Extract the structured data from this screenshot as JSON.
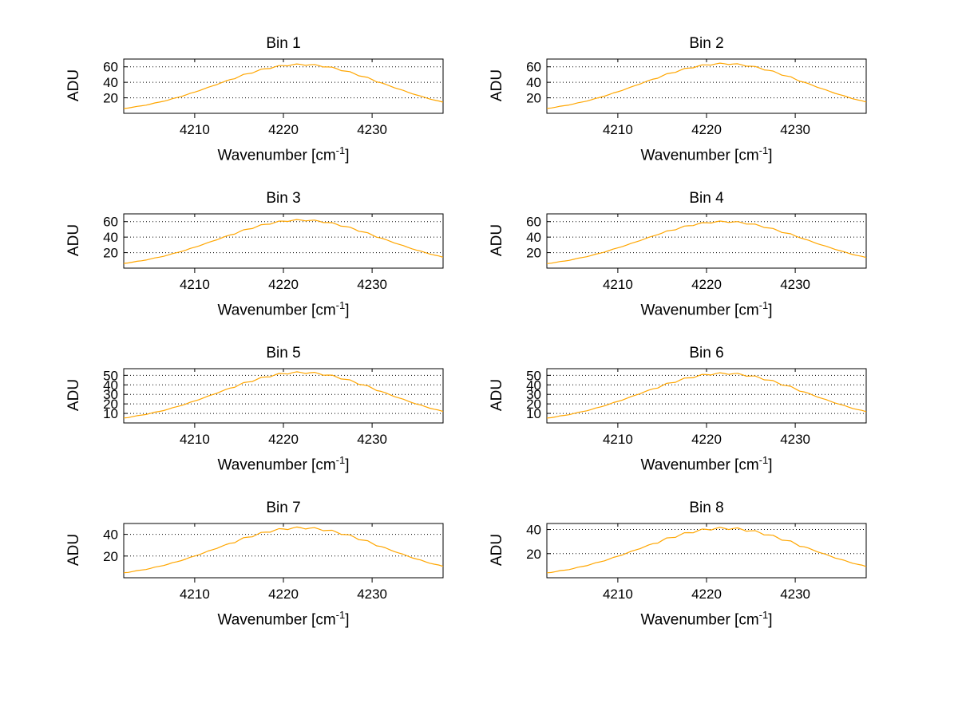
{
  "figure": {
    "background": "#ffffff",
    "line_color": "#ffa600",
    "axis_color": "#000000",
    "grid_color": "#000000"
  },
  "labels": {
    "ylabel": "ADU",
    "xlabel_prefix": "Wavenumber [cm",
    "xlabel_sup": "-1",
    "xlabel_suffix": "]"
  },
  "chart_data": {
    "type": "line",
    "layout": "4x2 grid of subplots, shared style",
    "xlabel": "Wavenumber [cm^-1]",
    "ylabel": "ADU",
    "xticks": [
      4210,
      4220,
      4230
    ],
    "xlim": [
      4202,
      4238
    ],
    "grid": "horizontal dotted lines at y ticks",
    "x": [
      4202,
      4203,
      4204,
      4205,
      4206,
      4207,
      4208,
      4209,
      4210,
      4211,
      4212,
      4213,
      4214,
      4215,
      4216,
      4217,
      4218,
      4219,
      4220,
      4221,
      4222,
      4223,
      4224,
      4225,
      4226,
      4227,
      4228,
      4229,
      4230,
      4231,
      4232,
      4233,
      4234,
      4235,
      4236,
      4237,
      4238
    ],
    "subplots": [
      {
        "title": "Bin 1",
        "yticks": [
          20,
          40,
          60
        ],
        "ylim": [
          0,
          70
        ],
        "peak": 63,
        "values": [
          6.2,
          7.8,
          9.7,
          11.8,
          14.4,
          17.1,
          20.3,
          23.7,
          27.4,
          31.3,
          35.3,
          39.4,
          43.5,
          47.4,
          51.2,
          54.5,
          57.5,
          59.8,
          61.6,
          62.6,
          63.0,
          62.6,
          61.6,
          59.8,
          57.5,
          54.5,
          51.2,
          47.4,
          43.5,
          39.4,
          35.3,
          31.3,
          27.4,
          23.7,
          20.3,
          17.1,
          14.4
        ]
      },
      {
        "title": "Bin 2",
        "yticks": [
          20,
          40,
          60
        ],
        "ylim": [
          0,
          70
        ],
        "peak": 64,
        "values": [
          6.3,
          7.9,
          9.9,
          12.0,
          14.6,
          17.4,
          20.6,
          24.1,
          27.8,
          31.8,
          35.9,
          40.1,
          44.2,
          48.2,
          52.0,
          55.4,
          58.4,
          60.7,
          62.5,
          63.6,
          64.0,
          63.6,
          62.5,
          60.7,
          58.4,
          55.4,
          52.0,
          48.2,
          44.2,
          40.1,
          35.9,
          31.8,
          27.8,
          24.1,
          20.6,
          17.4,
          14.6
        ]
      },
      {
        "title": "Bin 3",
        "yticks": [
          20,
          40,
          60
        ],
        "ylim": [
          0,
          70
        ],
        "peak": 62,
        "values": [
          6.1,
          7.7,
          9.5,
          11.7,
          14.1,
          16.9,
          20.0,
          23.3,
          27.0,
          30.8,
          34.8,
          38.8,
          42.8,
          46.7,
          50.3,
          53.6,
          56.5,
          58.8,
          60.6,
          61.6,
          62.0,
          61.6,
          60.6,
          58.8,
          56.5,
          53.6,
          50.3,
          46.7,
          42.8,
          38.8,
          34.8,
          30.8,
          27.0,
          23.3,
          20.0,
          16.9,
          14.1
        ]
      },
      {
        "title": "Bin 4",
        "yticks": [
          20,
          40,
          60
        ],
        "ylim": [
          0,
          70
        ],
        "peak": 60,
        "values": [
          5.9,
          7.4,
          9.2,
          11.3,
          13.7,
          16.3,
          19.3,
          22.6,
          26.1,
          29.8,
          33.7,
          37.6,
          41.5,
          45.2,
          48.7,
          51.9,
          54.7,
          56.9,
          58.6,
          59.6,
          60.0,
          59.6,
          58.6,
          56.9,
          54.7,
          51.9,
          48.7,
          45.2,
          41.5,
          37.6,
          33.7,
          29.8,
          26.1,
          22.6,
          19.3,
          16.3,
          13.7
        ]
      },
      {
        "title": "Bin 5",
        "yticks": [
          10,
          20,
          30,
          40,
          50
        ],
        "ylim": [
          0,
          57
        ],
        "peak": 53,
        "values": [
          5.2,
          6.6,
          8.2,
          10.0,
          12.1,
          14.4,
          17.1,
          19.9,
          23.1,
          26.3,
          29.7,
          33.2,
          36.6,
          39.9,
          43.0,
          45.8,
          48.3,
          50.3,
          51.8,
          52.7,
          53.0,
          52.7,
          51.8,
          50.3,
          48.3,
          45.8,
          43.0,
          39.9,
          36.6,
          33.2,
          29.7,
          26.3,
          23.1,
          19.9,
          17.1,
          14.4,
          12.1
        ]
      },
      {
        "title": "Bin 6",
        "yticks": [
          10,
          20,
          30,
          40,
          50
        ],
        "ylim": [
          0,
          57
        ],
        "peak": 52,
        "values": [
          5.1,
          6.4,
          8.0,
          9.8,
          11.9,
          14.1,
          16.7,
          19.6,
          22.6,
          25.8,
          29.2,
          32.6,
          35.9,
          39.2,
          42.2,
          45.0,
          47.4,
          49.3,
          50.8,
          51.7,
          52.0,
          51.7,
          50.8,
          49.3,
          47.4,
          45.0,
          42.2,
          39.2,
          35.9,
          32.6,
          29.2,
          25.8,
          22.6,
          19.6,
          16.7,
          14.1,
          11.9
        ]
      },
      {
        "title": "Bin 7",
        "yticks": [
          20,
          40
        ],
        "ylim": [
          0,
          50
        ],
        "peak": 46,
        "values": [
          4.6,
          5.7,
          7.1,
          8.6,
          10.5,
          12.5,
          14.8,
          17.3,
          20.0,
          22.9,
          25.8,
          28.8,
          31.8,
          34.6,
          37.4,
          39.8,
          42.0,
          43.7,
          44.9,
          45.7,
          46.0,
          45.7,
          44.9,
          43.7,
          42.0,
          39.8,
          37.4,
          34.6,
          31.8,
          28.8,
          25.8,
          22.9,
          20.0,
          17.3,
          14.8,
          12.5,
          10.5
        ]
      },
      {
        "title": "Bin 8",
        "yticks": [
          20,
          40
        ],
        "ylim": [
          0,
          45
        ],
        "peak": 41,
        "values": [
          4.1,
          5.1,
          6.3,
          7.7,
          9.3,
          11.2,
          13.2,
          15.4,
          17.8,
          20.4,
          23.0,
          25.7,
          28.3,
          30.9,
          33.3,
          35.5,
          37.4,
          38.9,
          40.1,
          40.8,
          41.0,
          40.8,
          40.1,
          38.9,
          37.4,
          35.5,
          33.3,
          30.9,
          28.3,
          25.7,
          23.0,
          20.4,
          17.8,
          15.4,
          13.2,
          11.2,
          9.3
        ]
      }
    ]
  }
}
